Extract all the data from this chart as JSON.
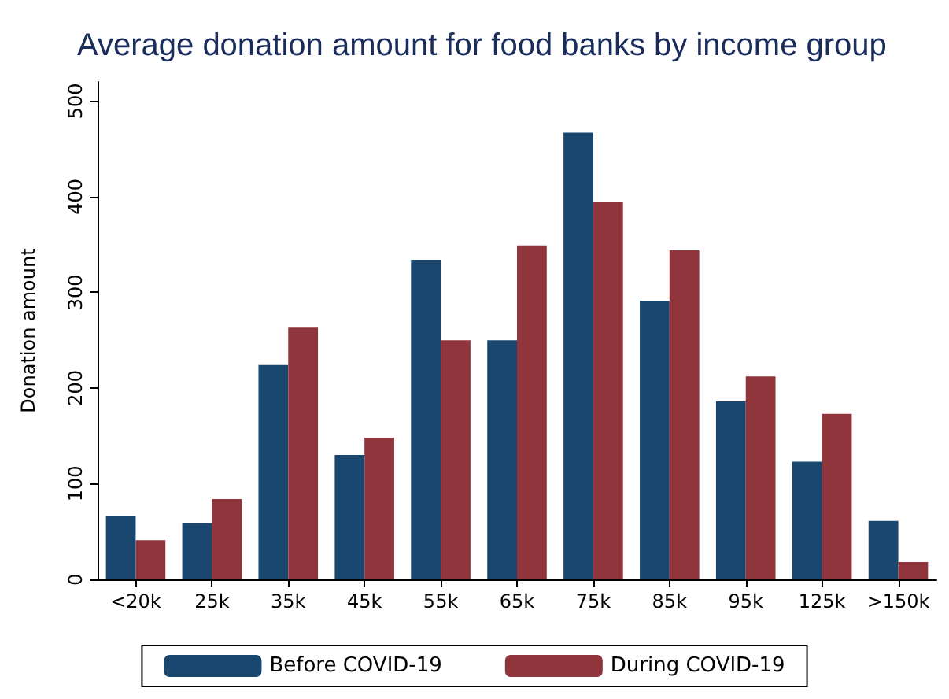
{
  "chart_data": {
    "type": "bar",
    "title": "Average donation amount for food banks by income group",
    "ylabel": "Donation amount",
    "categories": [
      "<20k",
      "25k",
      "35k",
      "45k",
      "55k",
      "65k",
      "75k",
      "85k",
      "95k",
      "125k",
      ">150k"
    ],
    "series": [
      {
        "name": "Before COVID-19",
        "color": "#1a476f",
        "values": [
          66,
          59,
          224,
          130,
          334,
          250,
          467,
          291,
          186,
          123,
          61
        ]
      },
      {
        "name": "During COVID-19",
        "color": "#90353b",
        "values": [
          41,
          84,
          263,
          148,
          250,
          349,
          395,
          344,
          212,
          173,
          18
        ]
      }
    ],
    "ylim": [
      0,
      520
    ],
    "yticks": [
      0,
      100,
      200,
      300,
      400,
      500
    ],
    "grid": false,
    "legend": "bottom"
  }
}
